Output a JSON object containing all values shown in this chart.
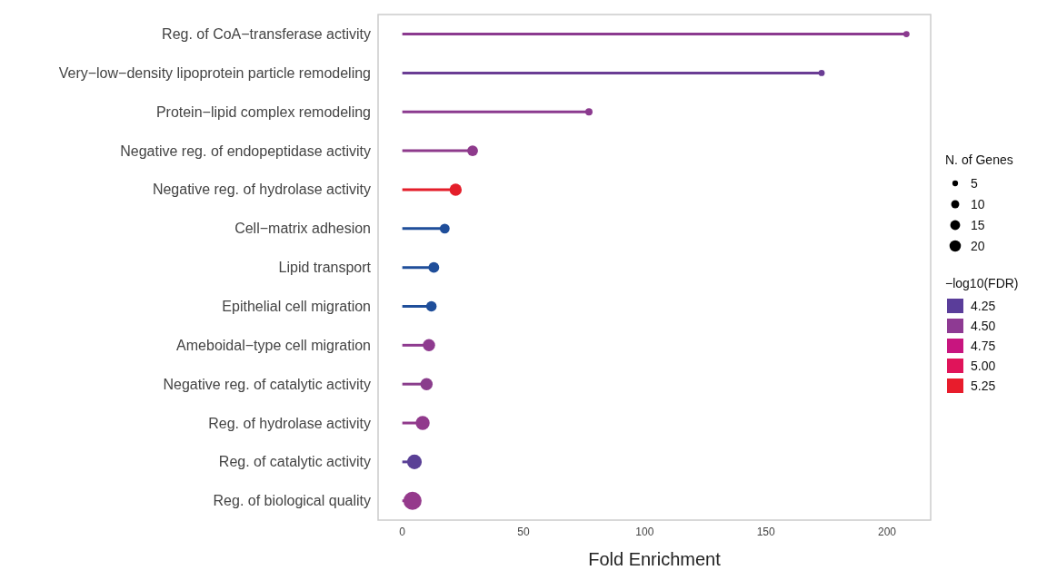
{
  "chart_data": {
    "type": "lollipop",
    "orientation": "horizontal",
    "xlabel": "Fold Enrichment",
    "categories": [
      "Reg. of CoA−transferase activity",
      "Very−low−density lipoprotein particle remodeling",
      "Protein−lipid complex remodeling",
      "Negative reg. of endopeptidase activity",
      "Negative reg. of hydrolase activity",
      "Cell−matrix adhesion",
      "Lipid transport",
      "Epithelial cell migration",
      "Ameboidal−type cell migration",
      "Negative reg. of catalytic activity",
      "Reg. of hydrolase activity",
      "Reg. of catalytic activity",
      "Reg. of biological quality"
    ],
    "values": [
      208,
      173,
      77,
      29,
      22,
      17.5,
      13,
      12,
      11,
      10,
      8.4,
      5,
      4.2
    ],
    "sizes": [
      6,
      6,
      8,
      18,
      23,
      15,
      18,
      17,
      23,
      23,
      30,
      33,
      51
    ],
    "size_legend": [
      5,
      10,
      15,
      20
    ],
    "legend_title": "N. of Genes",
    "colors": [
      "#8b3a8f",
      "#6a3d94",
      "#8b3a8f",
      "#8e3a8c",
      "#e41e2a",
      "#1f4e9a",
      "#1f4e9a",
      "#1f4e9a",
      "#8e3a8f",
      "#8a3d8c",
      "#913a8c",
      "#5a4096",
      "#953a8c"
    ],
    "clabel": "−log10(FDR)",
    "cticks": [
      {
        "value": 4.25,
        "label": "4.25"
      },
      {
        "value": 4.5,
        "label": "4.50"
      },
      {
        "value": 4.75,
        "label": "4.75"
      },
      {
        "value": 5,
        "label": "5.00"
      },
      {
        "value": 5.25,
        "label": "5.25"
      }
    ],
    "xlim": [
      -10,
      218
    ],
    "xticks": [
      0,
      50,
      100,
      150,
      200
    ]
  }
}
